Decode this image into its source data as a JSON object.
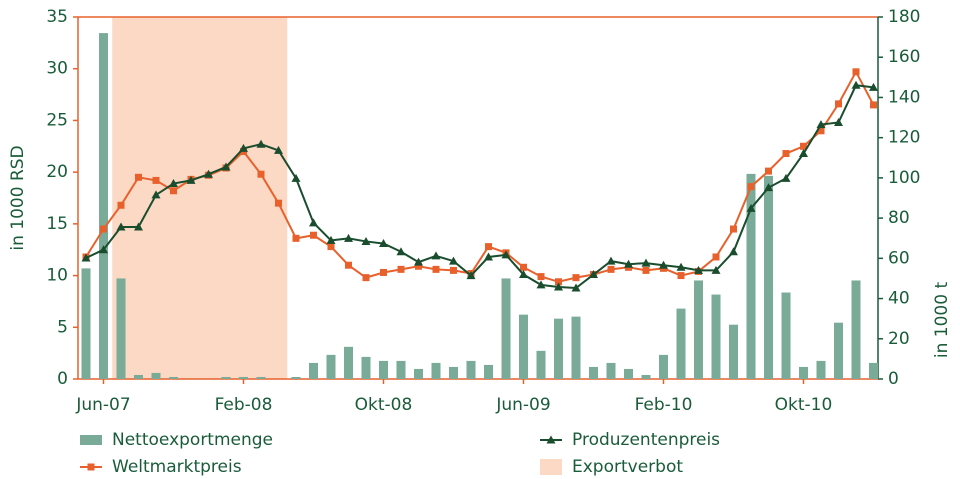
{
  "chart_data": {
    "type": "bar-line",
    "ylabel": "in 1000 RSD",
    "y2label": "in 1000 t",
    "ylim": [
      0,
      35
    ],
    "yticks": [
      0,
      5,
      10,
      15,
      20,
      25,
      30,
      35
    ],
    "y2lim": [
      0,
      180
    ],
    "y2ticks": [
      0,
      20,
      40,
      60,
      80,
      100,
      120,
      140,
      160,
      180
    ],
    "categories": [
      null,
      "Jun-07",
      null,
      null,
      null,
      null,
      null,
      null,
      null,
      "Feb-08",
      null,
      null,
      null,
      null,
      null,
      null,
      null,
      "Okt-08",
      null,
      null,
      null,
      null,
      null,
      null,
      null,
      "Jun-09",
      null,
      null,
      null,
      null,
      null,
      null,
      null,
      "Feb-10",
      null,
      null,
      null,
      null,
      null,
      null,
      null,
      "Okt-10",
      null,
      null,
      null,
      null
    ],
    "series": [
      {
        "name": "Nettoexportmenge",
        "type": "bar",
        "axis": "y2",
        "color": "#7aab98",
        "values": [
          55,
          172,
          50,
          2,
          3,
          1,
          0,
          0,
          1,
          1,
          1,
          0,
          1,
          8,
          12,
          16,
          11,
          9,
          9,
          5,
          8,
          6,
          9,
          7,
          50,
          32,
          14,
          30,
          31,
          6,
          8,
          5,
          2,
          12,
          35,
          49,
          42,
          27,
          102,
          101,
          43,
          6,
          9,
          28,
          49,
          8
        ]
      },
      {
        "name": "Weltmarktpreis",
        "type": "line",
        "marker": "square",
        "color": "#e8612c",
        "values": [
          11.8,
          14.5,
          16.8,
          19.5,
          19.2,
          18.2,
          19.3,
          19.7,
          20.4,
          22.0,
          19.8,
          17.0,
          13.6,
          13.9,
          12.8,
          11.0,
          9.8,
          10.3,
          10.6,
          10.9,
          10.6,
          10.5,
          10.2,
          12.8,
          12.2,
          10.8,
          9.9,
          9.4,
          9.8,
          10.1,
          10.6,
          10.8,
          10.5,
          10.7,
          10.0,
          10.4,
          11.8,
          14.5,
          18.6,
          20.1,
          21.8,
          22.5,
          24.0,
          26.6,
          29.7,
          26.5
        ]
      },
      {
        "name": "Produzentenpreis",
        "type": "line",
        "marker": "triangle",
        "color": "#1a4d2e",
        "values": [
          11.7,
          12.5,
          14.7,
          14.7,
          17.8,
          18.9,
          19.2,
          19.8,
          20.5,
          22.3,
          22.7,
          22.1,
          19.4,
          15.1,
          13.4,
          13.6,
          13.3,
          13.1,
          12.3,
          11.3,
          11.9,
          11.4,
          10.0,
          11.8,
          12.0,
          10.1,
          9.1,
          8.9,
          8.8,
          10.1,
          11.4,
          11.1,
          11.2,
          11.0,
          10.8,
          10.5,
          10.5,
          12.3,
          16.5,
          18.5,
          19.4,
          21.8,
          24.6,
          24.8,
          28.4,
          28.2
        ]
      }
    ],
    "bands": [
      {
        "name": "Exportverbot",
        "color": "#fbd9c4",
        "from": 1.5,
        "to": 11.5
      }
    ]
  }
}
